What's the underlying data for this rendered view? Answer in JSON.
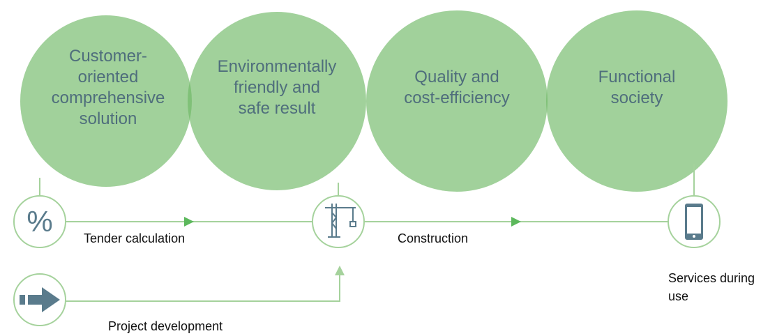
{
  "circles": [
    {
      "lines": [
        "Customer-",
        "oriented",
        "comprehensive",
        "solution"
      ]
    },
    {
      "lines": [
        "Environmentally",
        "friendly and",
        "safe result"
      ]
    },
    {
      "lines": [
        "Quality and",
        "cost-efficiency"
      ]
    },
    {
      "lines": [
        "Functional",
        "society"
      ]
    }
  ],
  "steps": [
    {
      "lines": [
        "Tender calculation"
      ]
    },
    {
      "lines": [
        "Construction"
      ]
    },
    {
      "lines": [
        "Services during",
        "use"
      ]
    },
    {
      "lines": [
        "Project development"
      ]
    }
  ]
}
